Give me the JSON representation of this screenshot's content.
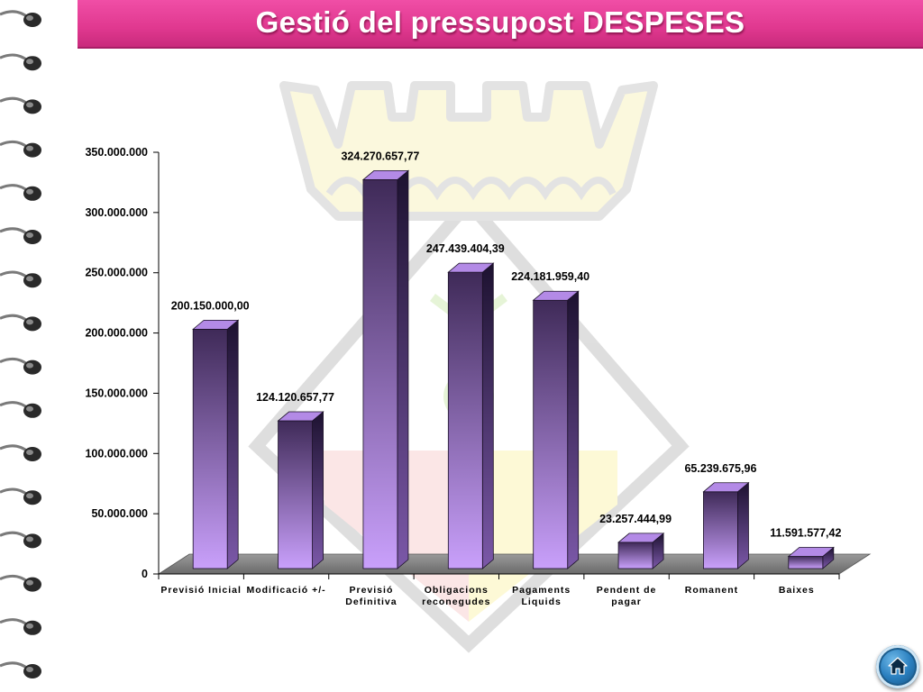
{
  "page": {
    "title": "Gestió del pressupost DESPESES"
  },
  "colors": {
    "title_bar": "#e0388f",
    "bar_top": "#4a3266",
    "bar_bottom": "#c59cf5",
    "floor": "#8a8a8a"
  },
  "icons": {
    "home": "home-icon",
    "binding": "spiral-binding-rings"
  },
  "chart_data": {
    "type": "bar",
    "style": "3d",
    "title": "",
    "xlabel": "",
    "ylabel": "",
    "ylim": [
      0,
      350000000
    ],
    "yticks": [
      0,
      50000000,
      100000000,
      150000000,
      200000000,
      250000000,
      300000000,
      350000000
    ],
    "ytick_labels": [
      "0",
      "50.000.000",
      "100.000.000",
      "150.000.000",
      "200.000.000",
      "250.000.000",
      "300.000.000",
      "350.000.000"
    ],
    "categories": [
      [
        "Previsió Inicial"
      ],
      [
        "Modificació +/-"
      ],
      [
        "Previsió",
        "Definitiva"
      ],
      [
        "Obligacions",
        "reconegudes"
      ],
      [
        "Pagaments",
        "Liquids"
      ],
      [
        "Pendent de",
        "pagar"
      ],
      [
        "Romanent"
      ],
      [
        "Baixes"
      ]
    ],
    "values": [
      200150000.0,
      124120657.77,
      324270657.77,
      247439404.39,
      224181959.4,
      23257444.99,
      65239675.96,
      11591577.42
    ],
    "value_labels": [
      "200.150.000,00",
      "124.120.657,77",
      "324.270.657,77",
      "247.439.404,39",
      "224.181.959,40",
      "23.257.444,99",
      "65.239.675,96",
      "11.591.577,42"
    ],
    "grid": false,
    "legend": "none"
  }
}
